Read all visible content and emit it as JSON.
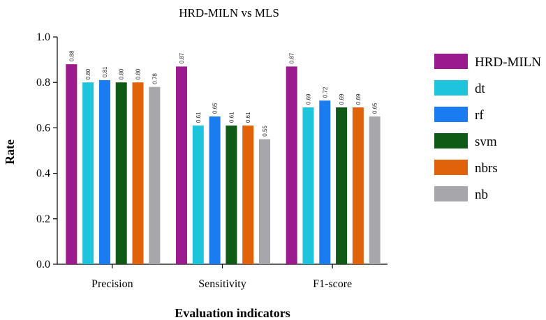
{
  "chart_data": {
    "type": "bar",
    "title": "HRD-MILN  vs MLS",
    "xlabel": "Evaluation indicators",
    "ylabel": "Rate",
    "ylim": [
      0,
      1.0
    ],
    "yticks": [
      "0.0",
      "0.2",
      "0.4",
      "0.6",
      "0.8",
      "1.0"
    ],
    "categories": [
      "Precision",
      "Sensitivity",
      "F1-score"
    ],
    "series": [
      {
        "name": "HRD-MILN",
        "color": "#9b1a8e",
        "values": [
          0.88,
          0.87,
          0.87
        ],
        "labels": [
          "0.88",
          "0.87",
          "0.87"
        ]
      },
      {
        "name": "dt",
        "color": "#1ec3dc",
        "values": [
          0.8,
          0.61,
          0.69
        ],
        "labels": [
          "0.80",
          "0.61",
          "0.69"
        ]
      },
      {
        "name": "rf",
        "color": "#1a7cf0",
        "values": [
          0.81,
          0.65,
          0.72
        ],
        "labels": [
          "0.81",
          "0.65",
          "0.72"
        ]
      },
      {
        "name": "svm",
        "color": "#0f5a14",
        "values": [
          0.8,
          0.61,
          0.69
        ],
        "labels": [
          "0.80",
          "0.61",
          "0.69"
        ]
      },
      {
        "name": "nbrs",
        "color": "#e0620a",
        "values": [
          0.8,
          0.61,
          0.69
        ],
        "labels": [
          "0.80",
          "0.61",
          "0.69"
        ]
      },
      {
        "name": "nb",
        "color": "#a7a7ab",
        "values": [
          0.78,
          0.55,
          0.65
        ],
        "labels": [
          "0.78",
          "0.55",
          "0.65"
        ]
      }
    ],
    "legend": "right",
    "grid": false
  }
}
